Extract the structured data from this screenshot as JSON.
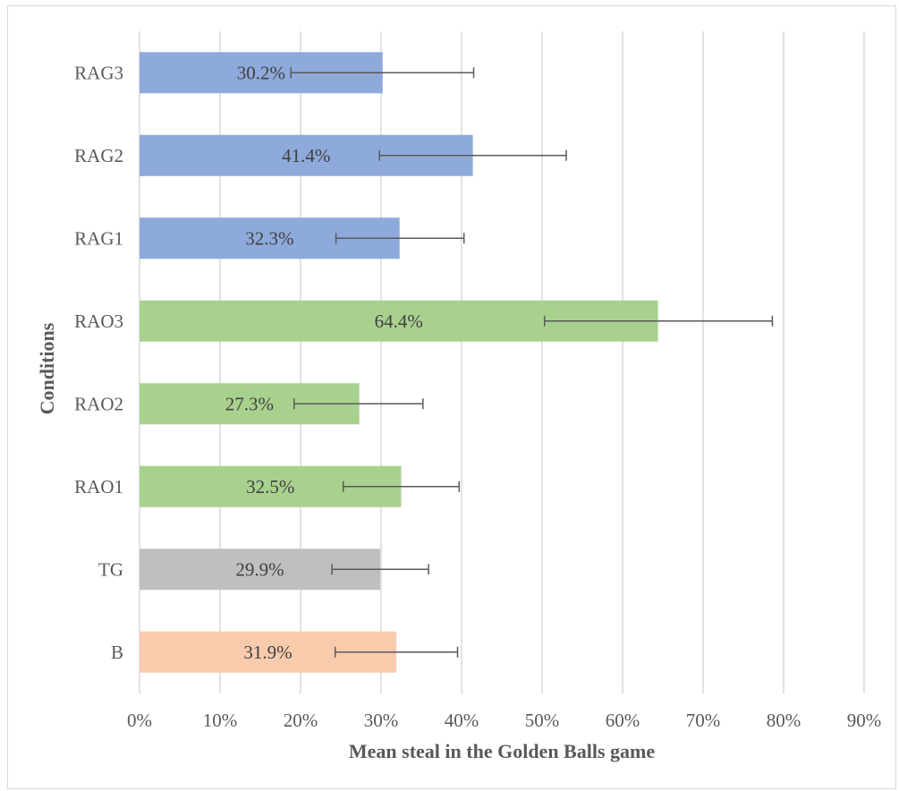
{
  "chart_data": {
    "type": "bar",
    "orientation": "horizontal",
    "categories": [
      "RAG3",
      "RAG2",
      "RAG1",
      "RAO3",
      "RAO2",
      "RAO1",
      "TG",
      "B"
    ],
    "values": [
      30.2,
      41.4,
      32.3,
      64.4,
      27.3,
      32.5,
      29.9,
      31.9
    ],
    "error_low": [
      18.8,
      29.8,
      24.4,
      50.3,
      19.2,
      25.3,
      23.9,
      24.3
    ],
    "error_high": [
      41.5,
      53.0,
      40.3,
      78.6,
      35.2,
      39.7,
      35.9,
      39.5
    ],
    "data_labels": [
      "30.2%",
      "41.4%",
      "32.3%",
      "64.4%",
      "27.3%",
      "32.5%",
      "29.9%",
      "31.9%"
    ],
    "bar_colors": [
      "#8eaadb",
      "#8eaadb",
      "#8eaadb",
      "#a9d18e",
      "#a9d18e",
      "#a9d18e",
      "#bfbfbf",
      "#f8cbad"
    ],
    "xlim": [
      0,
      90
    ],
    "x_ticks": [
      "0%",
      "10%",
      "20%",
      "30%",
      "40%",
      "50%",
      "60%",
      "70%",
      "80%",
      "90%"
    ],
    "xlabel": "Mean steal in the Golden Balls game",
    "ylabel": "Conditions",
    "title": "",
    "grid": "vertical",
    "legend": "none"
  }
}
